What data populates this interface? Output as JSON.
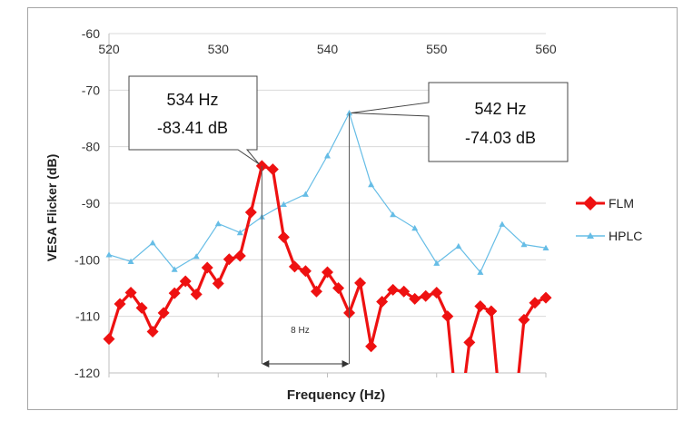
{
  "chart_data": {
    "type": "line",
    "xlabel": "Frequency (Hz)",
    "ylabel": "VESA Flicker (dB)",
    "xlim": [
      520,
      560
    ],
    "ylim": [
      -120,
      -60
    ],
    "x_ticks": [
      520,
      530,
      540,
      550,
      560
    ],
    "y_ticks": [
      -60,
      -70,
      -80,
      -90,
      -100,
      -110,
      -120
    ],
    "x_tick_labels": [
      "520",
      "530",
      "540",
      "550",
      "560"
    ],
    "y_tick_labels": [
      "-60",
      "-70",
      "-80",
      "-90",
      "-100",
      "-110",
      "-120"
    ],
    "grid": "horizontal",
    "legend_position": "right",
    "series": [
      {
        "name": "FLM",
        "color": "#ee1111",
        "marker": "diamond",
        "points": [
          [
            520,
            -114.0
          ],
          [
            521,
            -107.8
          ],
          [
            522,
            -105.8
          ],
          [
            523,
            -108.5
          ],
          [
            524,
            -112.7
          ],
          [
            525,
            -109.4
          ],
          [
            526,
            -105.9
          ],
          [
            527,
            -103.8
          ],
          [
            528,
            -106.1
          ],
          [
            529,
            -101.4
          ],
          [
            530,
            -104.2
          ],
          [
            531,
            -99.9
          ],
          [
            532,
            -99.3
          ],
          [
            533,
            -91.6
          ],
          [
            534,
            -83.41
          ],
          [
            535,
            -84.0
          ],
          [
            536,
            -96.0
          ],
          [
            537,
            -101.2
          ],
          [
            538,
            -102.0
          ],
          [
            539,
            -105.6
          ],
          [
            540,
            -102.2
          ],
          [
            541,
            -105.0
          ],
          [
            542,
            -109.4
          ],
          [
            543,
            -104.1
          ],
          [
            544,
            -115.3
          ],
          [
            545,
            -107.4
          ],
          [
            546,
            -105.3
          ],
          [
            547,
            -105.6
          ],
          [
            548,
            -106.9
          ],
          [
            549,
            -106.4
          ],
          [
            550,
            -105.8
          ],
          [
            551,
            -110.0
          ],
          [
            552,
            -130.0
          ],
          [
            553,
            -114.6
          ],
          [
            554,
            -108.2
          ],
          [
            555,
            -109.1
          ],
          [
            556,
            -130.0
          ],
          [
            557,
            -130.0
          ],
          [
            558,
            -110.6
          ],
          [
            559,
            -107.6
          ],
          [
            560,
            -106.7
          ]
        ]
      },
      {
        "name": "HPLC",
        "color": "#66bde6",
        "marker": "triangle",
        "points": [
          [
            520,
            -99.1
          ],
          [
            522,
            -100.3
          ],
          [
            524,
            -97.0
          ],
          [
            526,
            -101.7
          ],
          [
            528,
            -99.4
          ],
          [
            530,
            -93.6
          ],
          [
            532,
            -95.2
          ],
          [
            534,
            -92.4
          ],
          [
            536,
            -90.2
          ],
          [
            538,
            -88.4
          ],
          [
            540,
            -81.6
          ],
          [
            542,
            -74.03
          ],
          [
            544,
            -86.7
          ],
          [
            546,
            -92.0
          ],
          [
            548,
            -94.4
          ],
          [
            550,
            -100.6
          ],
          [
            552,
            -97.6
          ],
          [
            554,
            -102.2
          ],
          [
            556,
            -93.7
          ],
          [
            558,
            -97.3
          ],
          [
            560,
            -97.9
          ]
        ]
      }
    ],
    "annotations": {
      "callout_left": {
        "line1": "534 Hz",
        "line2": "-83.41 dB",
        "target": [
          534,
          -83.41
        ]
      },
      "callout_right": {
        "line1": "542 Hz",
        "line2": "-74.03 dB",
        "target": [
          542,
          -74.03
        ]
      },
      "interval": {
        "label": "8 Hz",
        "from": 534,
        "to": 542
      }
    }
  }
}
